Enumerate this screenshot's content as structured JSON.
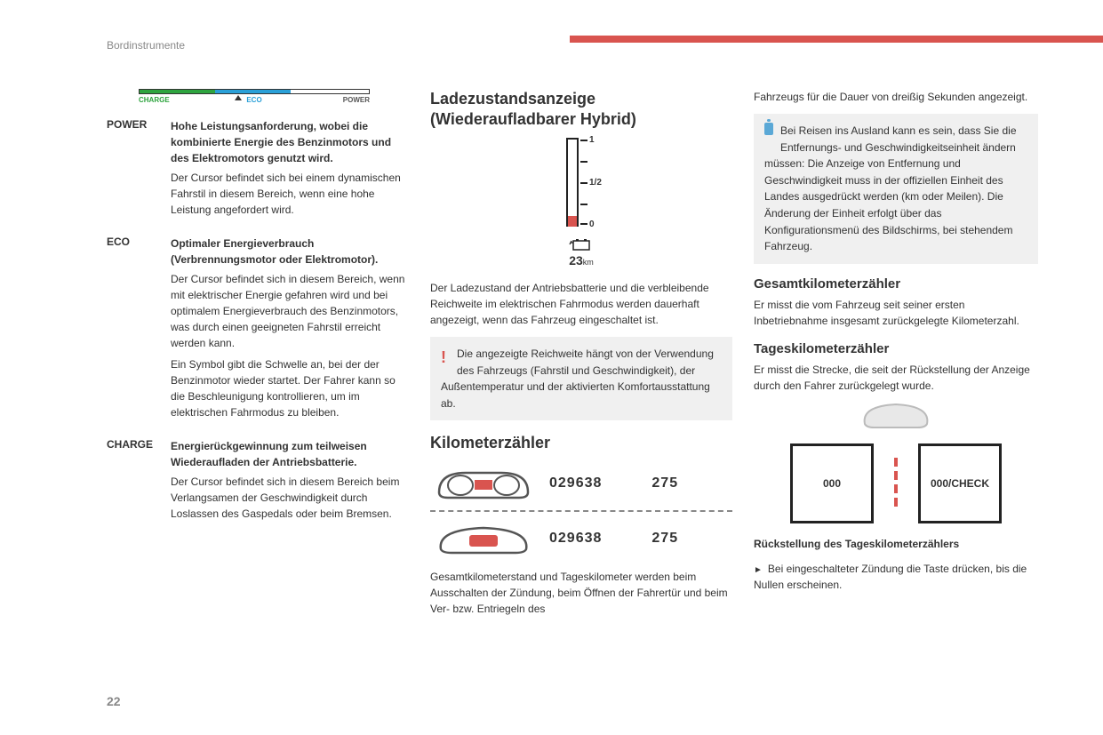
{
  "header": {
    "section_label": "Bordinstrumente",
    "page_number": "22",
    "accent_color": "#d9544f"
  },
  "power_gauge": {
    "segments": [
      {
        "label": "CHARGE",
        "color": "#2ea43f",
        "width_pct": 33
      },
      {
        "label": "ECO",
        "color": "#2aa0d8",
        "width_pct": 33,
        "label_color": "#2aa0d8"
      },
      {
        "label": "POWER",
        "color": "#ffffff",
        "width_pct": 34
      }
    ],
    "pointer_pct": 43
  },
  "definitions": [
    {
      "term": "POWER",
      "bold": "Hohe Leistungsanforderung, wobei die kombinierte Energie des Benzinmotors und des Elektromotors genutzt wird.",
      "paras": [
        "Der Cursor befindet sich bei einem dynamischen Fahrstil in diesem Bereich, wenn eine hohe Leistung angefordert wird."
      ]
    },
    {
      "term": "ECO",
      "bold": "Optimaler Energieverbrauch (Verbrennungsmotor oder Elektromotor).",
      "paras": [
        "Der Cursor befindet sich in diesem Bereich, wenn mit elektrischer Energie gefahren wird und bei optimalem Energieverbrauch des Benzinmotors, was durch einen geeigneten Fahrstil erreicht werden kann.",
        "Ein Symbol gibt die Schwelle an, bei der der Benzinmotor wieder startet. Der Fahrer kann so die Beschleunigung kontrollieren, um im elektrischen Fahrmodus zu bleiben."
      ]
    },
    {
      "term": "CHARGE",
      "bold": "Energierückgewinnung zum teilweisen Wiederaufladen der Antriebsbatterie.",
      "paras": [
        "Der Cursor befindet sich in diesem Bereich beim Verlangsamen der Geschwindigkeit durch Loslassen des Gaspedals oder beim Bremsen."
      ]
    }
  ],
  "col2": {
    "h_charge": "Ladezustandsanzeige (Wiederaufladbarer Hybrid)",
    "charge_gauge": {
      "top_label": "1",
      "mid_label": "1/2",
      "bottom_label": "0",
      "fill_color": "#d9544f",
      "range_value": "23",
      "range_unit": "km"
    },
    "charge_text": "Der Ladezustand der Antriebsbatterie und die verbleibende Reichweite im elektrischen Fahrmodus werden dauerhaft angezeigt, wenn das Fahrzeug eingeschaltet ist.",
    "warn_text": "Die angezeigte Reichweite hängt von der Verwendung des Fahrzeugs (Fahrstil und Geschwindigkeit), der Außentemperatur und der aktivierten Komfortausstattung ab.",
    "h_odo": "Kilometerzähler",
    "odo": {
      "total": "029638",
      "trip": "275"
    },
    "odo_text": "Gesamtkilometerstand und Tageskilometer werden beim Ausschalten der Zündung, beim Öffnen der Fahrertür und beim Ver- bzw. Entriegeln des"
  },
  "col3": {
    "cont_text": "Fahrzeugs für die Dauer von dreißig Sekunden angezeigt.",
    "info_text": "Bei Reisen ins Ausland kann es sein, dass Sie die Entfernungs- und Geschwindigkeitseinheit ändern müssen: Die Anzeige von Entfernung und Geschwindigkeit muss in der offiziellen Einheit des Landes ausgedrückt werden (km oder Meilen). Die Änderung der Einheit erfolgt über das Konfigurationsmenü des Bildschirms, bei stehendem Fahrzeug.",
    "h_total": "Gesamtkilometerzähler",
    "total_text": "Er misst die vom Fahrzeug seit seiner ersten Inbetriebnahme insgesamt zurückgelegte Kilometerzahl.",
    "h_trip": "Tageskilometerzähler",
    "trip_text": "Er misst die Strecke, die seit der Rückstellung der Anzeige durch den Fahrer zurückgelegt wurde.",
    "trip_fig": {
      "box1": "000",
      "box2": "000/CHECK"
    },
    "h_reset": "Rückstellung des Tageskilometerzählers",
    "reset_text": "Bei eingeschalteter Zündung die Taste drücken, bis die Nullen erscheinen."
  }
}
